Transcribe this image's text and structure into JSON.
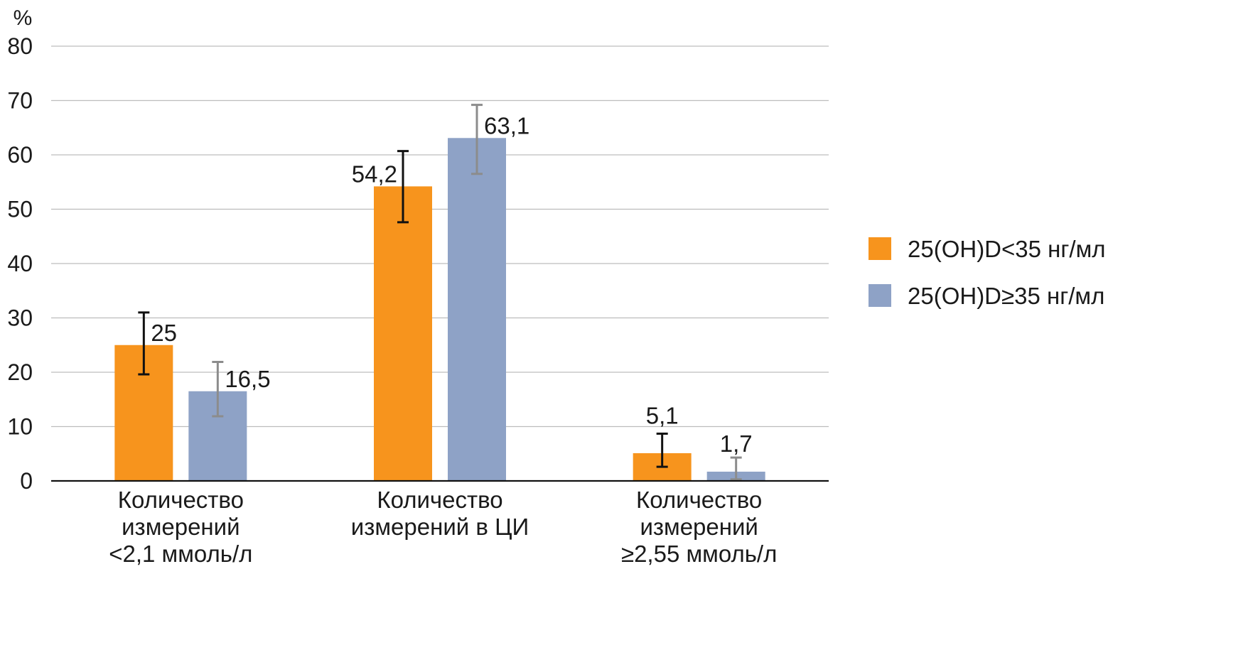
{
  "chart_data": {
    "type": "bar",
    "y_unit": "%",
    "ylim": [
      0,
      80
    ],
    "y_ticks": [
      0,
      10,
      20,
      30,
      40,
      50,
      60,
      70,
      80
    ],
    "grid": true,
    "legend_position": "right",
    "categories": [
      [
        "Количество",
        "измерений",
        "<2,1 ммоль/л"
      ],
      [
        "Количество",
        "измерений в ЦИ"
      ],
      [
        "Количество",
        "измерений",
        "≥2,55 ммоль/л"
      ]
    ],
    "series": [
      {
        "name": "25(OH)D<35 нг/мл",
        "color": "#f7941d",
        "error_color": "#111111",
        "values": [
          25,
          54.2,
          5.1
        ],
        "labels": [
          "25",
          "54,2",
          "5,1"
        ],
        "error_low": [
          19.6,
          47.6,
          2.6
        ],
        "error_high": [
          31,
          60.7,
          8.7
        ]
      },
      {
        "name": "25(OH)D≥35 нг/мл",
        "color": "#8ea2c6",
        "error_color": "#8c8c8c",
        "values": [
          16.5,
          63.1,
          1.7
        ],
        "labels": [
          "16,5",
          "63,1",
          "1,7"
        ],
        "error_low": [
          11.9,
          56.5,
          0.3
        ],
        "error_high": [
          21.9,
          69.2,
          4.3
        ]
      }
    ]
  }
}
